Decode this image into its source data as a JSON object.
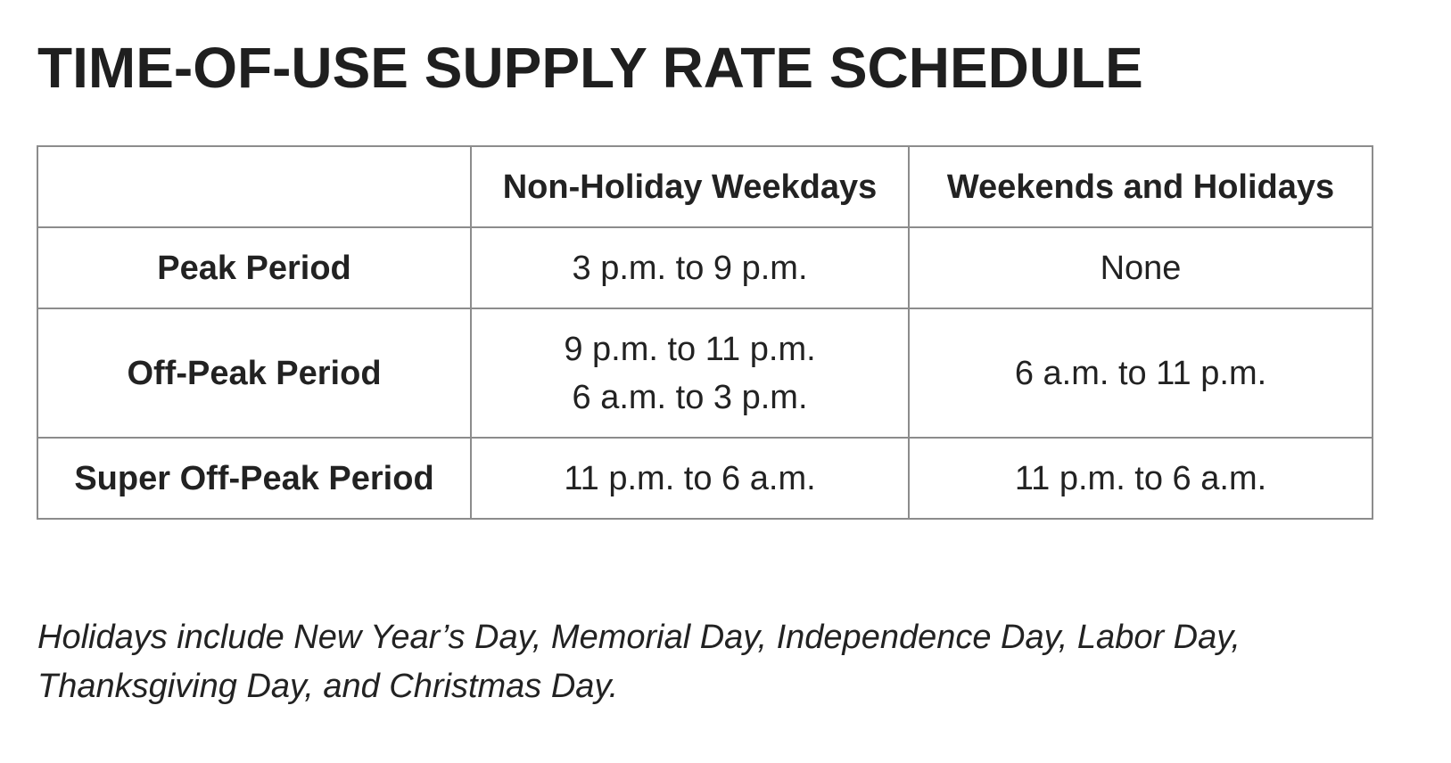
{
  "title": "TIME-OF-USE SUPPLY RATE SCHEDULE",
  "table": {
    "headers": [
      "",
      "Non-Holiday Weekdays",
      "Weekends and Holidays"
    ],
    "rows": [
      {
        "label": "Peak Period",
        "weekdays": [
          "3 p.m. to 9 p.m."
        ],
        "weekends": [
          "None"
        ]
      },
      {
        "label": "Off-Peak Period",
        "weekdays": [
          "9 p.m. to 11 p.m.",
          "6 a.m. to 3 p.m."
        ],
        "weekends": [
          "6 a.m. to 11 p.m."
        ]
      },
      {
        "label": "Super Off-Peak Period",
        "weekdays": [
          "11 p.m. to 6 a.m."
        ],
        "weekends": [
          "11 p.m. to 6 a.m."
        ]
      }
    ]
  },
  "footnote": {
    "line1": "Holidays include New Year’s Day, Memorial Day, Independence Day, Labor Day,",
    "line2": "Thanksgiving Day, and Christmas Day."
  }
}
